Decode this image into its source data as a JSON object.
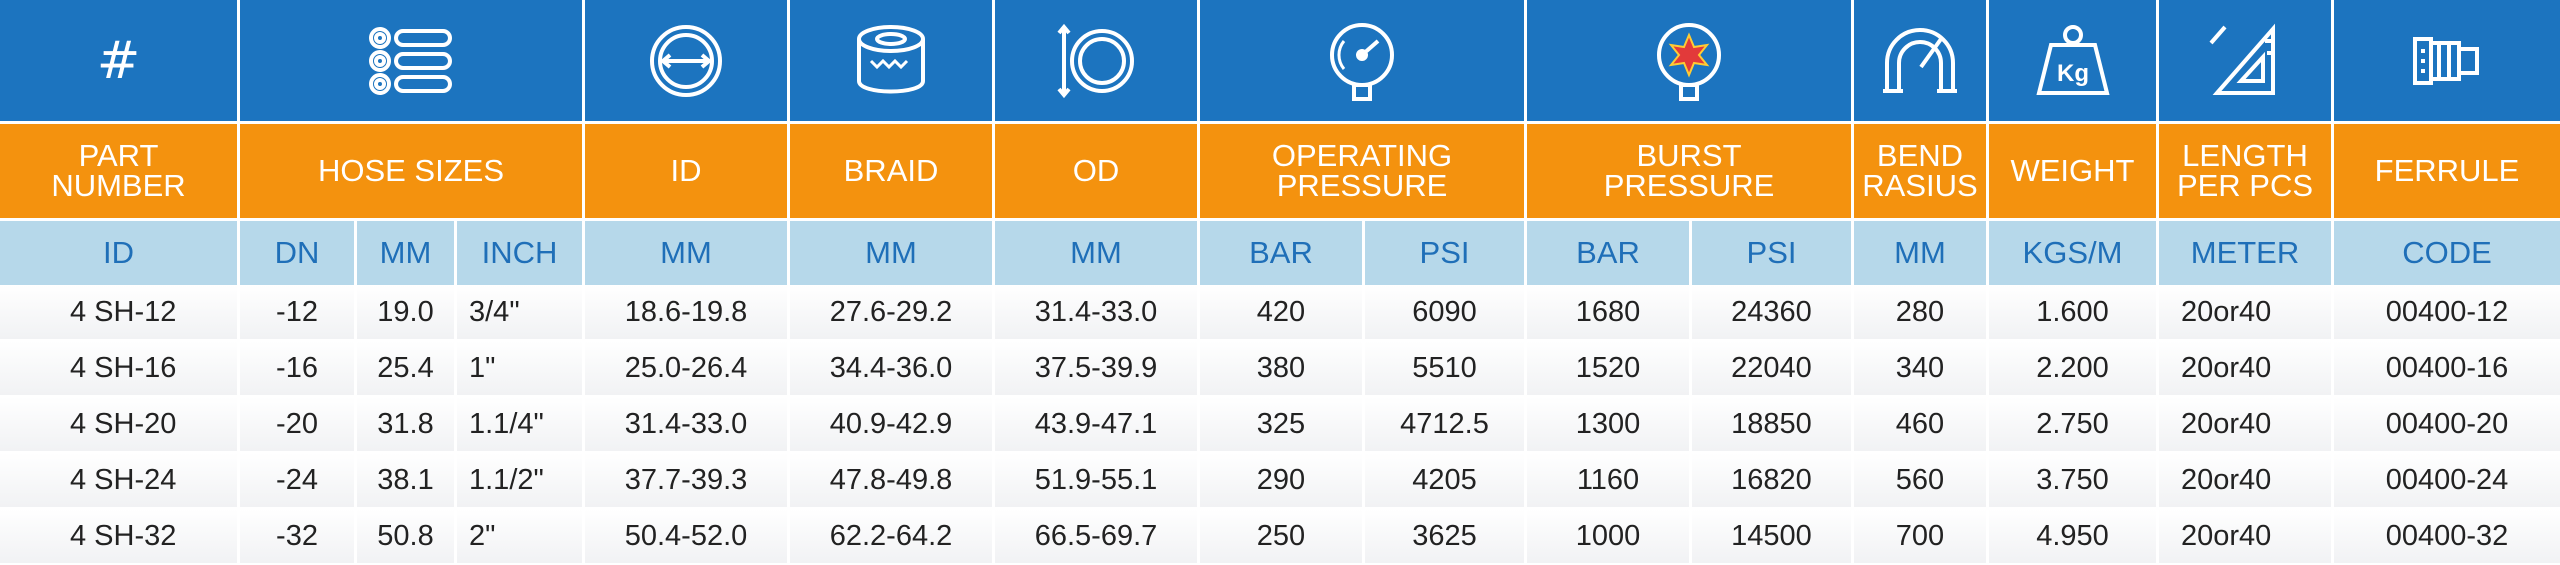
{
  "icons": {
    "part_number": "#",
    "hose_sizes": "hose-sizes-icon",
    "id": "inner-diameter-icon",
    "braid": "braid-icon",
    "od": "outer-diameter-icon",
    "operating_pressure": "pressure-gauge-icon",
    "burst_pressure": "burst-gauge-icon",
    "bend_radius": "bend-radius-icon",
    "weight": "weight-kg-icon",
    "length": "ruler-length-icon",
    "ferrule": "ferrule-icon"
  },
  "colors": {
    "icon_header": "#1c74bf",
    "title_header": "#f4920e",
    "unit_header": "#b6d8ea",
    "unit_text": "#1f6fb8"
  },
  "headers": {
    "part_number": [
      "PART",
      "NUMBER"
    ],
    "hose_sizes": "HOSE SIZES",
    "id": "ID",
    "braid": "BRAID",
    "od": "OD",
    "operating_pressure": [
      "OPERATING",
      "PRESSURE"
    ],
    "burst_pressure": [
      "BURST",
      "PRESSURE"
    ],
    "bend_radius": [
      "BEND",
      "RASIUS"
    ],
    "weight": "WEIGHT",
    "length": [
      "LENGTH",
      "PER PCS"
    ],
    "ferrule": "FERRULE"
  },
  "units": [
    "ID",
    "DN",
    "MM",
    "INCH",
    "MM",
    "MM",
    "MM",
    "BAR",
    "PSI",
    "BAR",
    "PSI",
    "MM",
    "KGS/M",
    "METER",
    "CODE"
  ],
  "rows": [
    [
      "4 SH-12",
      "-12",
      "19.0",
      "3/4\"",
      "18.6-19.8",
      "27.6-29.2",
      "31.4-33.0",
      "420",
      "6090",
      "1680",
      "24360",
      "280",
      "1.600",
      "20or40",
      "00400-12"
    ],
    [
      "4 SH-16",
      "-16",
      "25.4",
      "1\"",
      "25.0-26.4",
      "34.4-36.0",
      "37.5-39.9",
      "380",
      "5510",
      "1520",
      "22040",
      "340",
      "2.200",
      "20or40",
      "00400-16"
    ],
    [
      "4 SH-20",
      "-20",
      "31.8",
      "1.1/4\"",
      "31.4-33.0",
      "40.9-42.9",
      "43.9-47.1",
      "325",
      "4712.5",
      "1300",
      "18850",
      "460",
      "2.750",
      "20or40",
      "00400-20"
    ],
    [
      "4 SH-24",
      "-24",
      "38.1",
      "1.1/2\"",
      "37.7-39.3",
      "47.8-49.8",
      "51.9-55.1",
      "290",
      "4205",
      "1160",
      "16820",
      "560",
      "3.750",
      "20or40",
      "00400-24"
    ],
    [
      "4 SH-32",
      "-32",
      "50.8",
      "2\"",
      "50.4-52.0",
      "62.2-64.2",
      "66.5-69.7",
      "250",
      "3625",
      "1000",
      "14500",
      "700",
      "4.950",
      "20or40",
      "00400-32"
    ]
  ]
}
